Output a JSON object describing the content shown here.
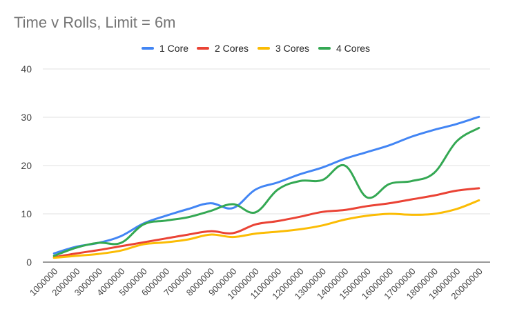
{
  "chart_data": {
    "type": "line",
    "title": "Time v Rolls, Limit = 6m",
    "xlabel": "",
    "ylabel": "",
    "ylim": [
      0,
      40
    ],
    "yticks": [
      0,
      10,
      20,
      30,
      40
    ],
    "grid": true,
    "legend_position": "top",
    "categories": [
      "1000000",
      "2000000",
      "3000000",
      "4000000",
      "5000000",
      "6000000",
      "7000000",
      "8000000",
      "9000000",
      "10000000",
      "11000000",
      "12000000",
      "13000000",
      "14000000",
      "15000000",
      "16000000",
      "17000000",
      "18000000",
      "19000000",
      "20000000"
    ],
    "series": [
      {
        "name": "1 Core",
        "color": "#4285F4",
        "values": [
          1.8,
          3.2,
          4.0,
          5.4,
          8.0,
          9.6,
          11.0,
          12.2,
          11.2,
          15.0,
          16.5,
          18.2,
          19.6,
          21.4,
          22.8,
          24.2,
          26.0,
          27.4,
          28.6,
          30.1
        ]
      },
      {
        "name": "2 Cores",
        "color": "#EA4335",
        "values": [
          1.0,
          1.8,
          2.5,
          3.3,
          4.1,
          4.9,
          5.7,
          6.4,
          6.0,
          7.8,
          8.5,
          9.4,
          10.4,
          10.8,
          11.6,
          12.2,
          13.0,
          13.8,
          14.8,
          15.3
        ]
      },
      {
        "name": "3 Cores",
        "color": "#FBBC04",
        "values": [
          0.9,
          1.3,
          1.7,
          2.4,
          3.7,
          4.1,
          4.7,
          5.7,
          5.2,
          5.9,
          6.3,
          6.8,
          7.6,
          8.8,
          9.6,
          10.0,
          9.8,
          10.0,
          11.0,
          12.8
        ]
      },
      {
        "name": "4 Cores",
        "color": "#34A853",
        "values": [
          1.3,
          3.0,
          4.0,
          4.0,
          7.8,
          8.6,
          9.3,
          10.6,
          12.0,
          10.3,
          15.0,
          16.8,
          17.0,
          20.0,
          13.4,
          16.2,
          16.8,
          18.5,
          25.0,
          27.8
        ]
      }
    ]
  }
}
